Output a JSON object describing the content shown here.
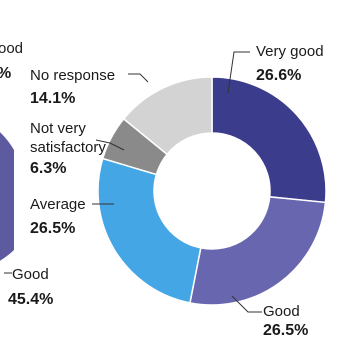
{
  "chart_data": [
    {
      "type": "pie",
      "title": "",
      "categories": [
        "Good"
      ],
      "labels": {
        "top_fragment": "ood",
        "top_value_fragment": "%",
        "good": "Good",
        "good_value": "45.4%"
      },
      "values": [
        45.4
      ],
      "colors": [
        "#5e5a9f"
      ],
      "note": "partially visible donut cropped at left edge"
    },
    {
      "type": "pie",
      "title": "",
      "categories": [
        "Very good",
        "Good",
        "Average",
        "Not very satisfactory",
        "No response"
      ],
      "values": [
        26.6,
        26.5,
        26.5,
        6.3,
        14.1
      ],
      "value_labels": [
        "26.6%",
        "26.5%",
        "26.5%",
        "6.3%",
        "14.1%"
      ],
      "label_lines": [
        [
          "Very good"
        ],
        [
          "Good"
        ],
        [
          "Average"
        ],
        [
          "Not very",
          "satisfactory"
        ],
        [
          "No response"
        ]
      ],
      "colors": [
        "#3c3c8c",
        "#6866ae",
        "#45a6e6",
        "#8a8a8a",
        "#d3d3d3"
      ],
      "legend": "none"
    }
  ]
}
